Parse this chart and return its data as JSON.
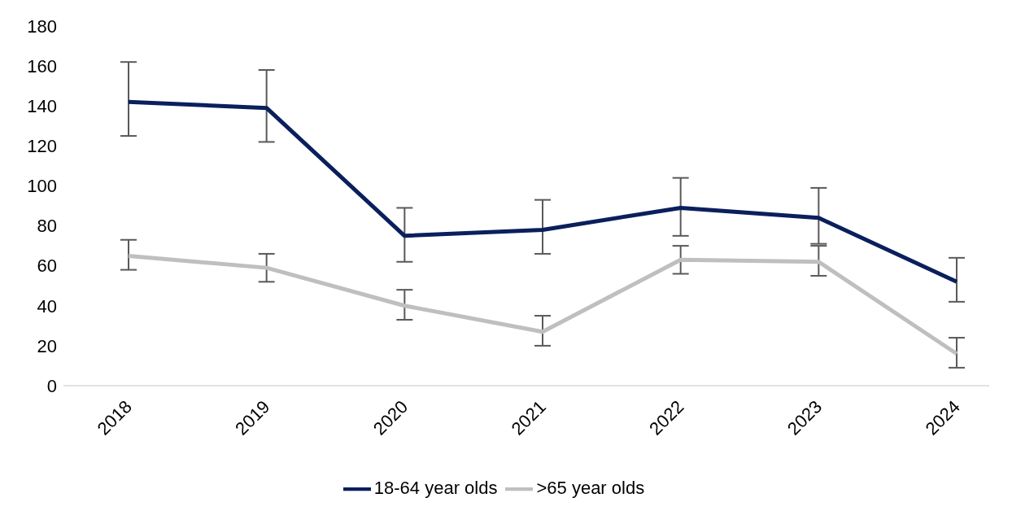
{
  "chart_data": {
    "type": "line",
    "categories": [
      "2018",
      "2019",
      "2020",
      "2021",
      "2022",
      "2023",
      "2024"
    ],
    "series": [
      {
        "name": "18-64 year olds",
        "color": "#0a1f5c",
        "values": [
          142,
          139,
          75,
          78,
          89,
          84,
          52
        ],
        "errors": [
          [
            125,
            162
          ],
          [
            122,
            158
          ],
          [
            62,
            89
          ],
          [
            66,
            93
          ],
          [
            75,
            104
          ],
          [
            71,
            99
          ],
          [
            42,
            64
          ]
        ]
      },
      {
        "name": ">65 year olds",
        "color": "#bfbfbf",
        "values": [
          65,
          59,
          40,
          27,
          63,
          62,
          16
        ],
        "errors": [
          [
            58,
            73
          ],
          [
            52,
            66
          ],
          [
            33,
            48
          ],
          [
            20,
            35
          ],
          [
            56,
            70
          ],
          [
            55,
            70
          ],
          [
            9,
            24
          ]
        ]
      }
    ],
    "ylim": [
      0,
      180
    ],
    "yticks": [
      0,
      20,
      40,
      60,
      80,
      100,
      120,
      140,
      160,
      180
    ],
    "grid": false,
    "legend": "bottom",
    "marker": "none",
    "line_style": "solid"
  }
}
